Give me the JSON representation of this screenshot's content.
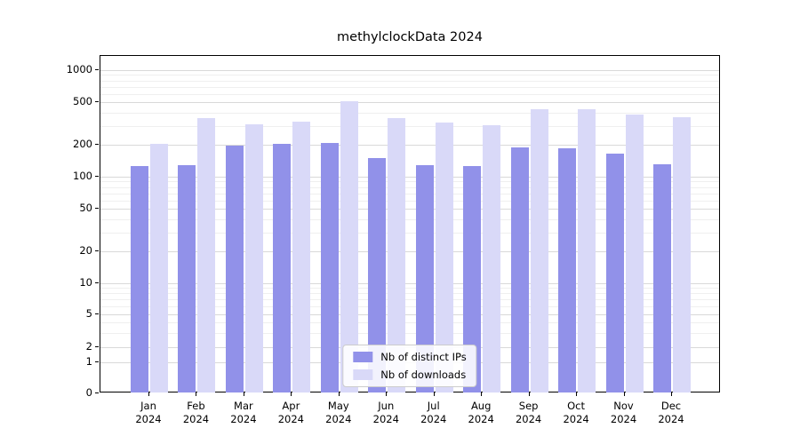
{
  "chart_data": {
    "type": "bar",
    "title": "methylclockData 2024",
    "categories": [
      {
        "month": "Jan",
        "year": "2024"
      },
      {
        "month": "Feb",
        "year": "2024"
      },
      {
        "month": "Mar",
        "year": "2024"
      },
      {
        "month": "Apr",
        "year": "2024"
      },
      {
        "month": "May",
        "year": "2024"
      },
      {
        "month": "Jun",
        "year": "2024"
      },
      {
        "month": "Jul",
        "year": "2024"
      },
      {
        "month": "Aug",
        "year": "2024"
      },
      {
        "month": "Sep",
        "year": "2024"
      },
      {
        "month": "Oct",
        "year": "2024"
      },
      {
        "month": "Nov",
        "year": "2024"
      },
      {
        "month": "Dec",
        "year": "2024"
      }
    ],
    "series": [
      {
        "name": "Nb of distinct IPs",
        "color": "#9191e9",
        "values": [
          125,
          128,
          197,
          205,
          207,
          150,
          128,
          126,
          190,
          185,
          165,
          130
        ]
      },
      {
        "name": "Nb of downloads",
        "color": "#d9d9f8",
        "values": [
          205,
          355,
          310,
          330,
          505,
          355,
          325,
          305,
          430,
          430,
          385,
          360
        ]
      }
    ],
    "y_axis": {
      "scale": "log",
      "ticks": [
        0,
        1,
        2,
        5,
        10,
        20,
        50,
        100,
        200,
        500,
        1000
      ]
    },
    "legend": {
      "position": "bottom-center"
    },
    "grid": true
  }
}
